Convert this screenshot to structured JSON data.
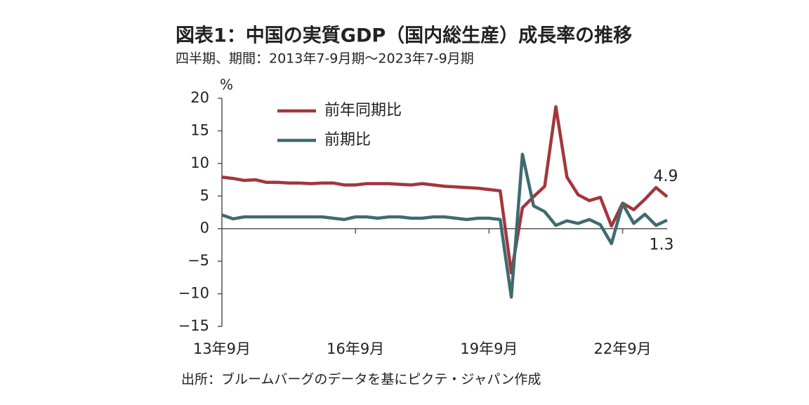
{
  "chart_data": {
    "type": "line",
    "title": "図表1：中国の実質GDP（国内総生産）成長率の推移",
    "subtitle": "四半期、期間：2013年7-9月期～2023年7-9月期",
    "y_label": "%",
    "source": "出所：ブルームバーグのデータを基にピクテ・ジャパン作成",
    "categories": [
      "13年9月",
      null,
      null,
      null,
      null,
      null,
      null,
      null,
      null,
      null,
      null,
      null,
      "16年9月",
      null,
      null,
      null,
      null,
      null,
      null,
      null,
      null,
      null,
      null,
      null,
      "19年9月",
      null,
      null,
      null,
      null,
      null,
      null,
      null,
      null,
      null,
      null,
      null,
      "22年9月",
      null,
      null,
      null,
      null
    ],
    "series": [
      {
        "name": "前年同期比",
        "color": "#a3363d",
        "values": [
          7.9,
          7.7,
          7.4,
          7.5,
          7.1,
          7.1,
          7.0,
          7.0,
          6.9,
          7.0,
          7.0,
          6.7,
          6.7,
          6.9,
          6.9,
          6.9,
          6.8,
          6.7,
          6.9,
          6.7,
          6.5,
          6.4,
          6.3,
          6.2,
          6.0,
          5.8,
          -6.8,
          3.2,
          4.9,
          6.5,
          18.7,
          7.9,
          5.2,
          4.3,
          4.8,
          0.4,
          3.9,
          2.9,
          4.5,
          6.3,
          4.9
        ]
      },
      {
        "name": "前期比",
        "color": "#3e6b6f",
        "values": [
          2.1,
          1.5,
          1.8,
          1.8,
          1.8,
          1.8,
          1.8,
          1.8,
          1.8,
          1.8,
          1.6,
          1.4,
          1.8,
          1.8,
          1.6,
          1.8,
          1.8,
          1.6,
          1.6,
          1.8,
          1.8,
          1.6,
          1.4,
          1.6,
          1.6,
          1.4,
          -10.5,
          11.4,
          3.5,
          2.6,
          0.5,
          1.2,
          0.8,
          1.4,
          0.6,
          -2.3,
          3.8,
          0.8,
          2.2,
          0.5,
          1.3
        ]
      }
    ],
    "ylim": [
      -15,
      20
    ],
    "yticks": [
      {
        "value": -15,
        "label": "−15"
      },
      {
        "value": -10,
        "label": "−10"
      },
      {
        "value": -5,
        "label": "−5"
      },
      0,
      5,
      10,
      15,
      20
    ],
    "grid": false,
    "legend": "upper-left"
  }
}
